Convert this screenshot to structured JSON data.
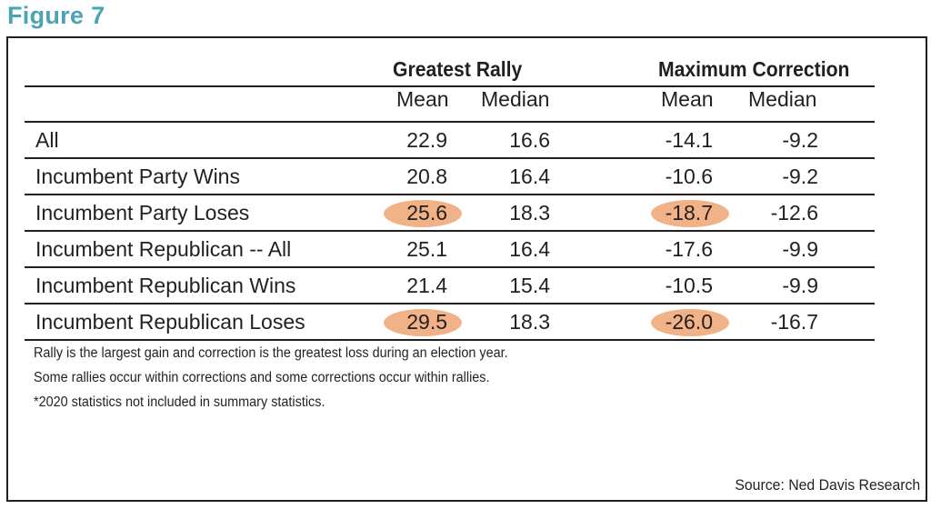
{
  "figure_label": "Figure 7",
  "headers": {
    "group1": "Greatest Rally",
    "group2": "Maximum Correction",
    "sub": [
      "Mean",
      "Median",
      "Mean",
      "Median"
    ]
  },
  "rows": [
    {
      "label": "All",
      "values": [
        "22.9",
        "16.6",
        "-14.1",
        "-9.2"
      ]
    },
    {
      "label": "Incumbent Party Wins",
      "values": [
        "20.8",
        "16.4",
        "-10.6",
        "-9.2"
      ]
    },
    {
      "label": "Incumbent Party Loses",
      "values": [
        "25.6",
        "18.3",
        "-18.7",
        "-12.6"
      ]
    },
    {
      "label": "Incumbent Republican -- All",
      "values": [
        "25.1",
        "16.4",
        "-17.6",
        "-9.9"
      ]
    },
    {
      "label": "Incumbent Republican Wins",
      "values": [
        "21.4",
        "15.4",
        "-10.5",
        "-9.9"
      ]
    },
    {
      "label": "Incumbent Republican Loses",
      "values": [
        "29.5",
        "18.3",
        "-26.0",
        "-16.7"
      ]
    }
  ],
  "highlighted_cells": [
    {
      "row": 2,
      "col": 0
    },
    {
      "row": 2,
      "col": 2
    },
    {
      "row": 5,
      "col": 0
    },
    {
      "row": 5,
      "col": 2
    }
  ],
  "highlight_color": "#f2b287",
  "title_color": "#4ba3b6",
  "notes": [
    "Rally is the largest gain and correction is the greatest loss during an election year.",
    "Some rallies occur within corrections and some corrections occur within rallies.",
    "*2020 statistics not included in summary statistics."
  ],
  "source": "Source: Ned Davis Research"
}
